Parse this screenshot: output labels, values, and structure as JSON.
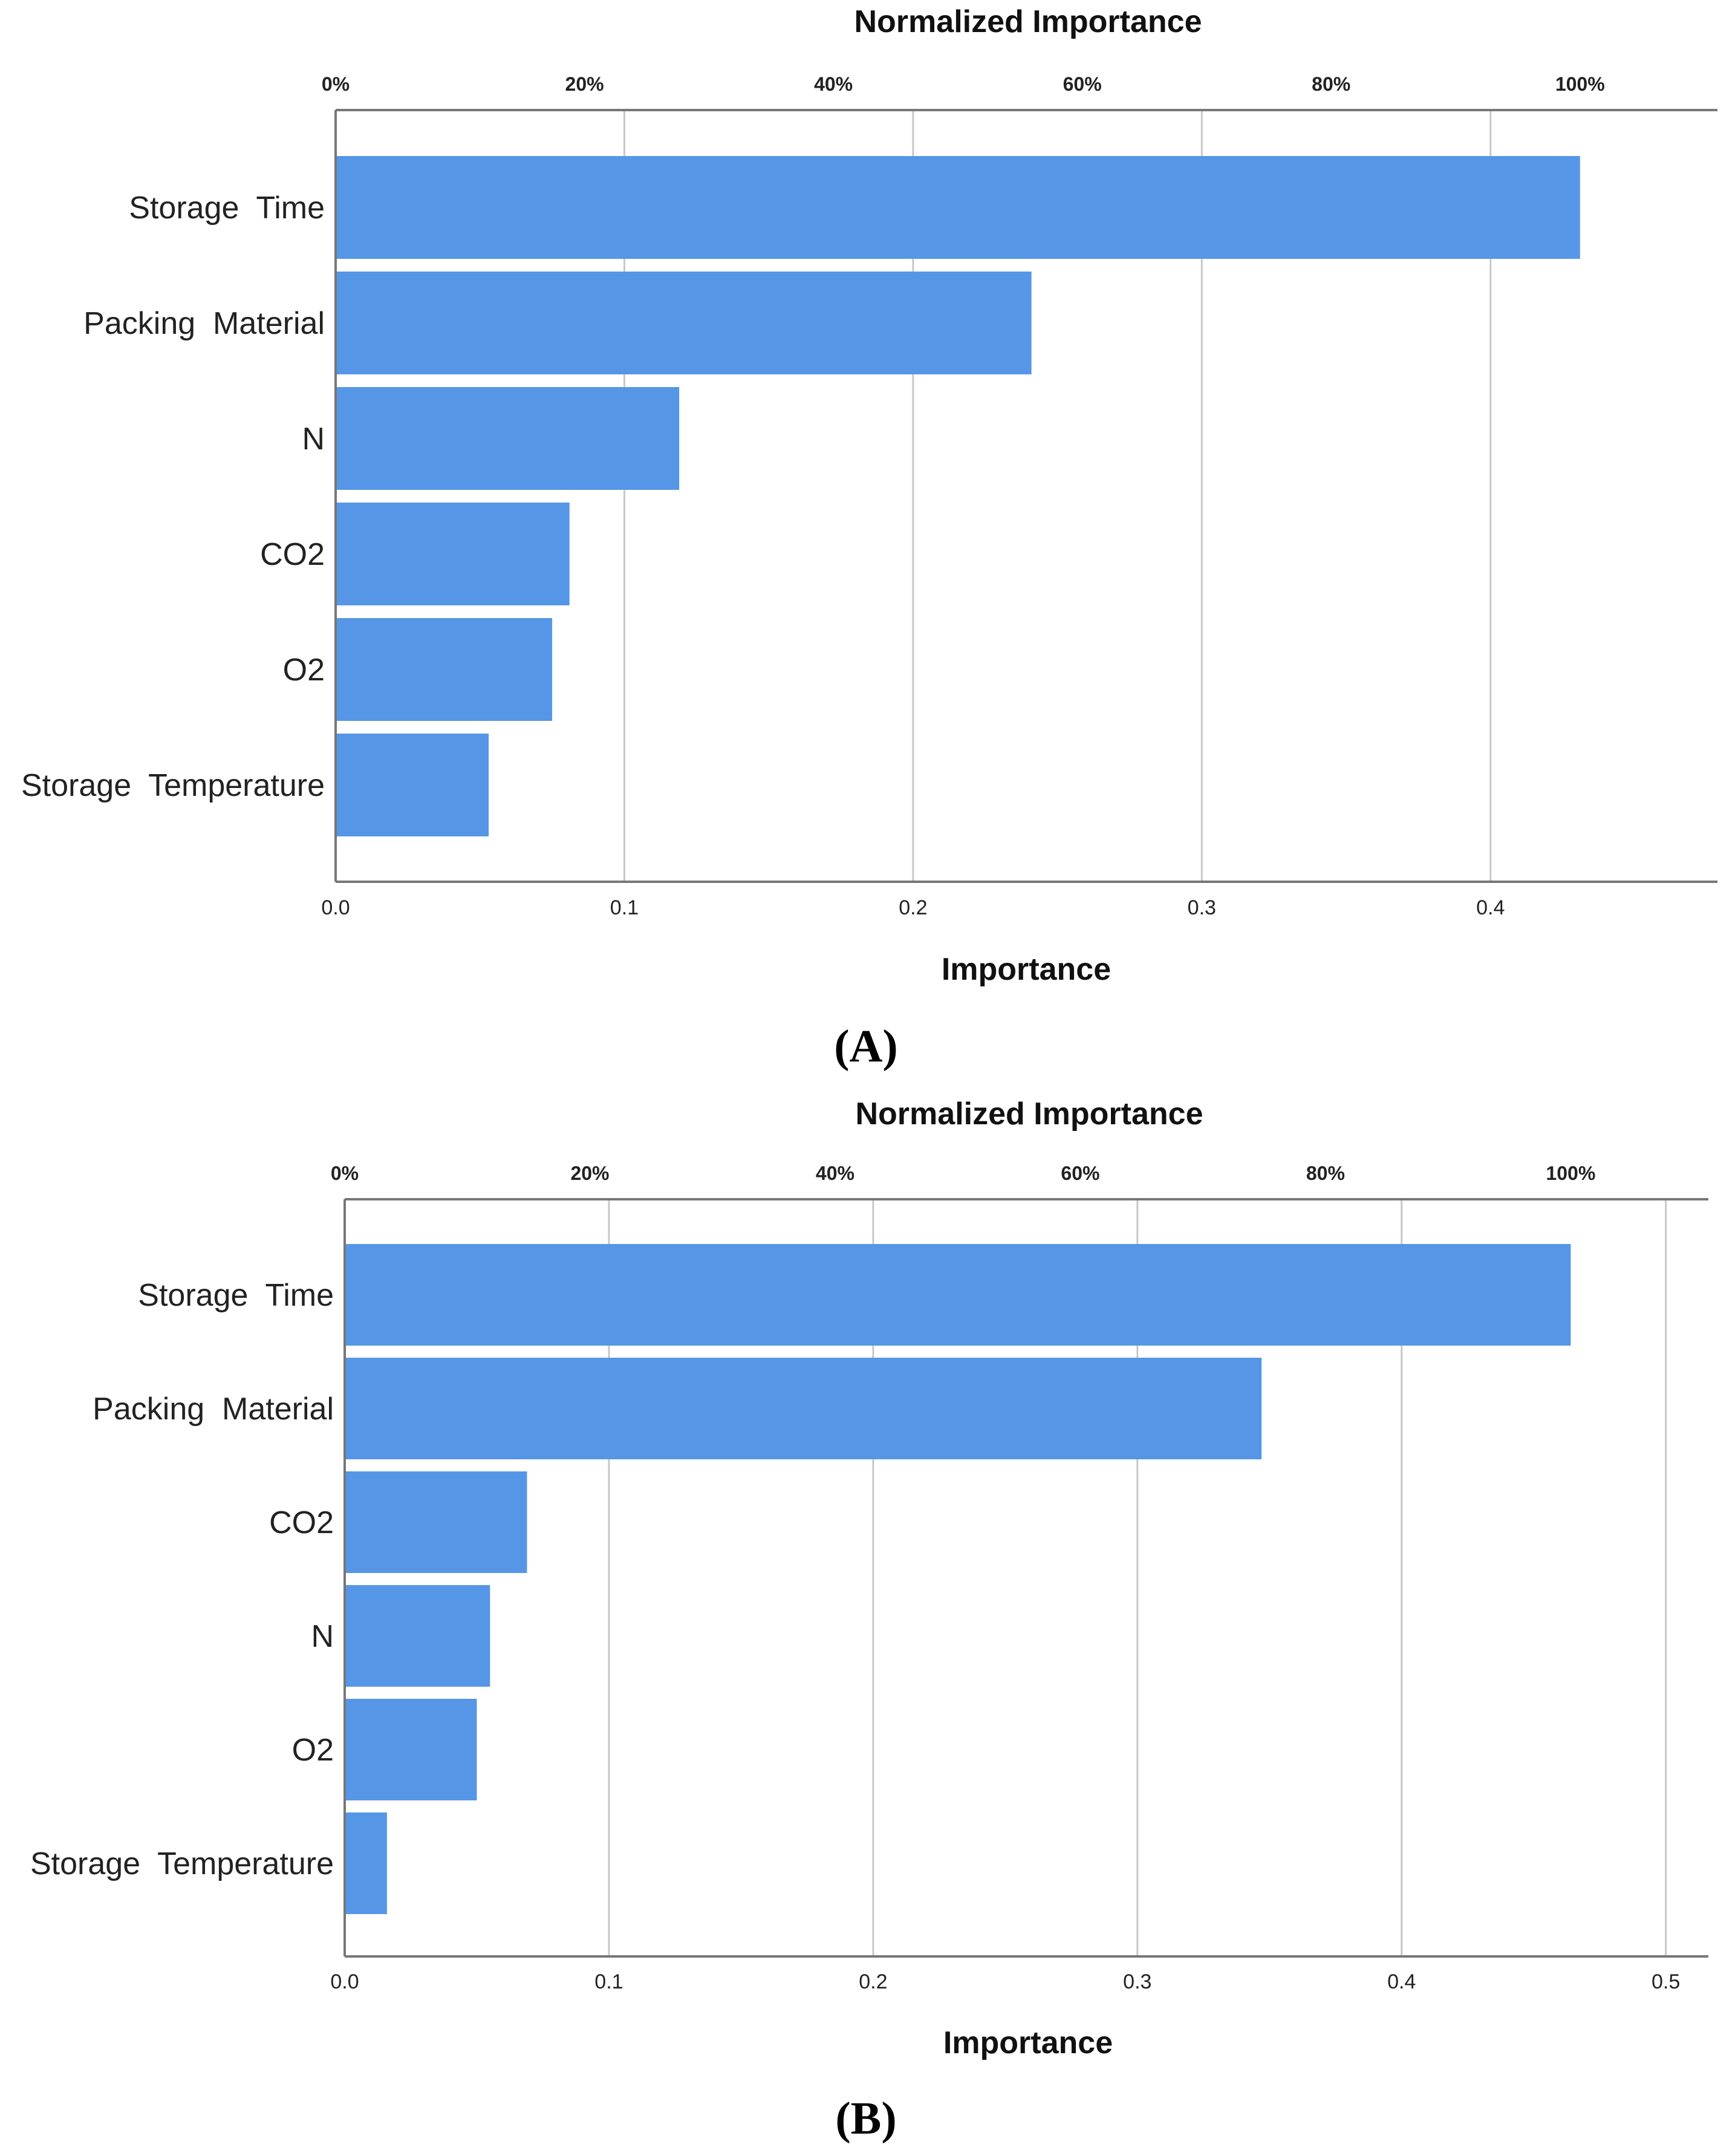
{
  "figure": {
    "panel_labels": [
      "(A)",
      "(B)"
    ]
  },
  "chart_data": [
    {
      "type": "bar",
      "orientation": "horizontal",
      "panel": "A",
      "title": "Normalized Importance",
      "xlabel": "Importance",
      "ylabel": "",
      "categories": [
        "Storage  Time",
        "Packing  Material",
        "N",
        "CO2",
        "O2",
        "Storage  Temperature"
      ],
      "values": [
        0.431,
        0.241,
        0.119,
        0.081,
        0.075,
        0.053
      ],
      "xlim": [
        0,
        0.4786
      ],
      "x_ticks": [
        0.0,
        0.1,
        0.2,
        0.3,
        0.4
      ],
      "x_tick_labels": [
        "0.0",
        "0.1",
        "0.2",
        "0.3",
        "0.4"
      ],
      "top_axis": {
        "max_value": 0.431,
        "ticks_percent": [
          0,
          20,
          40,
          60,
          80,
          100
        ],
        "tick_labels": [
          "0%",
          "20%",
          "40%",
          "60%",
          "80%",
          "100%"
        ]
      },
      "grid": true,
      "bar_color": "#5596E6"
    },
    {
      "type": "bar",
      "orientation": "horizontal",
      "panel": "B",
      "title": "Normalized Importance",
      "xlabel": "Importance",
      "ylabel": "",
      "categories": [
        "Storage  Time",
        "Packing  Material",
        "CO2",
        "N",
        "O2",
        "Storage  Temperature"
      ],
      "values": [
        0.464,
        0.347,
        0.069,
        0.055,
        0.05,
        0.016
      ],
      "xlim": [
        0,
        0.5161
      ],
      "x_ticks": [
        0.0,
        0.1,
        0.2,
        0.3,
        0.4,
        0.5
      ],
      "x_tick_labels": [
        "0.0",
        "0.1",
        "0.2",
        "0.3",
        "0.4",
        "0.5"
      ],
      "top_axis": {
        "max_value": 0.464,
        "ticks_percent": [
          0,
          20,
          40,
          60,
          80,
          100
        ],
        "tick_labels": [
          "0%",
          "20%",
          "40%",
          "60%",
          "80%",
          "100%"
        ]
      },
      "grid": true,
      "bar_color": "#5596E6"
    }
  ]
}
